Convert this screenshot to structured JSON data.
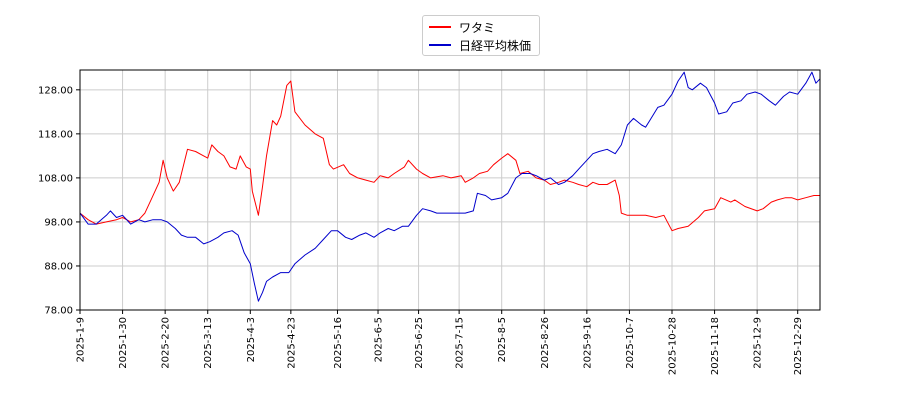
{
  "chart_data": {
    "type": "line",
    "title": "",
    "xlabel": "",
    "ylabel": "",
    "ylim": [
      78.0,
      132.5
    ],
    "yticks": [
      "78.00",
      "88.00",
      "98.00",
      "108.00",
      "118.00",
      "128.00"
    ],
    "xticks": [
      "2025-1-9",
      "2025-1-30",
      "2025-2-20",
      "2025-3-13",
      "2025-4-3",
      "2025-4-23",
      "2025-5-16",
      "2025-6-5",
      "2025-6-25",
      "2025-7-15",
      "2025-8-5",
      "2025-8-26",
      "2025-9-16",
      "2025-10-7",
      "2025-10-28",
      "2025-11-18",
      "2025-12-9",
      "2025-12-29"
    ],
    "grid": true,
    "legend_position": "top-center",
    "series": [
      {
        "name": "ワタミ",
        "color": "#ff0000",
        "points": [
          [
            "2025-01-09",
            100.0
          ],
          [
            "2025-01-13",
            98.5
          ],
          [
            "2025-01-17",
            97.5
          ],
          [
            "2025-01-22",
            98.0
          ],
          [
            "2025-01-27",
            98.5
          ],
          [
            "2025-01-30",
            99.0
          ],
          [
            "2025-02-03",
            98.0
          ],
          [
            "2025-02-07",
            98.5
          ],
          [
            "2025-02-10",
            100.0
          ],
          [
            "2025-02-13",
            103.0
          ],
          [
            "2025-02-17",
            107.0
          ],
          [
            "2025-02-19",
            112.0
          ],
          [
            "2025-02-21",
            108.0
          ],
          [
            "2025-02-24",
            105.0
          ],
          [
            "2025-02-27",
            107.0
          ],
          [
            "2025-03-03",
            114.5
          ],
          [
            "2025-03-07",
            114.0
          ],
          [
            "2025-03-11",
            113.0
          ],
          [
            "2025-03-13",
            112.5
          ],
          [
            "2025-03-15",
            115.5
          ],
          [
            "2025-03-18",
            114.0
          ],
          [
            "2025-03-21",
            113.0
          ],
          [
            "2025-03-24",
            110.5
          ],
          [
            "2025-03-27",
            110.0
          ],
          [
            "2025-03-29",
            113.0
          ],
          [
            "2025-04-01",
            110.5
          ],
          [
            "2025-04-03",
            110.0
          ],
          [
            "2025-04-04",
            105.0
          ],
          [
            "2025-04-07",
            99.5
          ],
          [
            "2025-04-09",
            106.0
          ],
          [
            "2025-04-11",
            113.0
          ],
          [
            "2025-04-14",
            121.0
          ],
          [
            "2025-04-16",
            120.0
          ],
          [
            "2025-04-18",
            122.0
          ],
          [
            "2025-04-21",
            129.0
          ],
          [
            "2025-04-23",
            130.0
          ],
          [
            "2025-04-25",
            123.0
          ],
          [
            "2025-04-30",
            120.0
          ],
          [
            "2025-05-05",
            118.0
          ],
          [
            "2025-05-09",
            117.0
          ],
          [
            "2025-05-12",
            111.0
          ],
          [
            "2025-05-14",
            110.0
          ],
          [
            "2025-05-19",
            111.0
          ],
          [
            "2025-05-22",
            109.0
          ],
          [
            "2025-05-26",
            108.0
          ],
          [
            "2025-05-30",
            107.5
          ],
          [
            "2025-06-03",
            107.0
          ],
          [
            "2025-06-06",
            108.5
          ],
          [
            "2025-06-10",
            108.0
          ],
          [
            "2025-06-13",
            109.0
          ],
          [
            "2025-06-18",
            110.5
          ],
          [
            "2025-06-20",
            112.0
          ],
          [
            "2025-06-24",
            110.0
          ],
          [
            "2025-06-27",
            109.0
          ],
          [
            "2025-07-01",
            108.0
          ],
          [
            "2025-07-07",
            108.5
          ],
          [
            "2025-07-11",
            108.0
          ],
          [
            "2025-07-16",
            108.5
          ],
          [
            "2025-07-18",
            107.0
          ],
          [
            "2025-07-22",
            108.0
          ],
          [
            "2025-07-25",
            109.0
          ],
          [
            "2025-07-29",
            109.5
          ],
          [
            "2025-08-01",
            111.0
          ],
          [
            "2025-08-05",
            112.5
          ],
          [
            "2025-08-08",
            113.5
          ],
          [
            "2025-08-12",
            112.0
          ],
          [
            "2025-08-14",
            109.0
          ],
          [
            "2025-08-18",
            109.5
          ],
          [
            "2025-08-22",
            108.0
          ],
          [
            "2025-08-26",
            107.5
          ],
          [
            "2025-08-29",
            106.5
          ],
          [
            "2025-09-02",
            107.0
          ],
          [
            "2025-09-05",
            107.5
          ],
          [
            "2025-09-09",
            107.0
          ],
          [
            "2025-09-12",
            106.5
          ],
          [
            "2025-09-16",
            106.0
          ],
          [
            "2025-09-19",
            107.0
          ],
          [
            "2025-09-22",
            106.5
          ],
          [
            "2025-09-26",
            106.5
          ],
          [
            "2025-09-30",
            107.5
          ],
          [
            "2025-10-02",
            104.0
          ],
          [
            "2025-10-03",
            100.0
          ],
          [
            "2025-10-06",
            99.5
          ],
          [
            "2025-10-10",
            99.5
          ],
          [
            "2025-10-15",
            99.5
          ],
          [
            "2025-10-20",
            99.0
          ],
          [
            "2025-10-24",
            99.5
          ],
          [
            "2025-10-28",
            96.0
          ],
          [
            "2025-10-31",
            96.5
          ],
          [
            "2025-11-05",
            97.0
          ],
          [
            "2025-11-10",
            99.0
          ],
          [
            "2025-11-13",
            100.5
          ],
          [
            "2025-11-18",
            101.0
          ],
          [
            "2025-11-21",
            103.5
          ],
          [
            "2025-11-26",
            102.5
          ],
          [
            "2025-11-28",
            103.0
          ],
          [
            "2025-12-03",
            101.5
          ],
          [
            "2025-12-09",
            100.5
          ],
          [
            "2025-12-12",
            101.0
          ],
          [
            "2025-12-16",
            102.5
          ],
          [
            "2025-12-19",
            103.0
          ],
          [
            "2025-12-23",
            103.5
          ],
          [
            "2025-12-26",
            103.5
          ],
          [
            "2025-12-29",
            103.0
          ],
          [
            "2026-01-02",
            103.5
          ],
          [
            "2026-01-06",
            104.0
          ],
          [
            "2026-01-09",
            104.0
          ]
        ]
      },
      {
        "name": "日経平均株価",
        "color": "#0000cc",
        "points": [
          [
            "2025-01-09",
            100.0
          ],
          [
            "2025-01-13",
            97.5
          ],
          [
            "2025-01-17",
            97.5
          ],
          [
            "2025-01-22",
            99.5
          ],
          [
            "2025-01-24",
            100.5
          ],
          [
            "2025-01-27",
            99.0
          ],
          [
            "2025-01-30",
            99.5
          ],
          [
            "2025-02-03",
            97.5
          ],
          [
            "2025-02-07",
            98.5
          ],
          [
            "2025-02-10",
            98.0
          ],
          [
            "2025-02-14",
            98.5
          ],
          [
            "2025-02-18",
            98.5
          ],
          [
            "2025-02-21",
            98.0
          ],
          [
            "2025-02-25",
            96.5
          ],
          [
            "2025-02-28",
            95.0
          ],
          [
            "2025-03-03",
            94.5
          ],
          [
            "2025-03-07",
            94.5
          ],
          [
            "2025-03-11",
            93.0
          ],
          [
            "2025-03-14",
            93.5
          ],
          [
            "2025-03-18",
            94.5
          ],
          [
            "2025-03-21",
            95.5
          ],
          [
            "2025-03-25",
            96.0
          ],
          [
            "2025-03-28",
            95.0
          ],
          [
            "2025-03-31",
            91.0
          ],
          [
            "2025-04-03",
            88.5
          ],
          [
            "2025-04-05",
            84.0
          ],
          [
            "2025-04-07",
            80.0
          ],
          [
            "2025-04-09",
            82.0
          ],
          [
            "2025-04-11",
            84.5
          ],
          [
            "2025-04-14",
            85.5
          ],
          [
            "2025-04-18",
            86.5
          ],
          [
            "2025-04-22",
            86.5
          ],
          [
            "2025-04-25",
            88.5
          ],
          [
            "2025-04-30",
            90.5
          ],
          [
            "2025-05-05",
            92.0
          ],
          [
            "2025-05-09",
            94.0
          ],
          [
            "2025-05-13",
            96.0
          ],
          [
            "2025-05-16",
            96.0
          ],
          [
            "2025-05-20",
            94.5
          ],
          [
            "2025-05-23",
            94.0
          ],
          [
            "2025-05-27",
            95.0
          ],
          [
            "2025-05-30",
            95.5
          ],
          [
            "2025-06-03",
            94.5
          ],
          [
            "2025-06-06",
            95.5
          ],
          [
            "2025-06-10",
            96.5
          ],
          [
            "2025-06-13",
            96.0
          ],
          [
            "2025-06-17",
            97.0
          ],
          [
            "2025-06-20",
            97.0
          ],
          [
            "2025-06-24",
            99.5
          ],
          [
            "2025-06-27",
            101.0
          ],
          [
            "2025-07-01",
            100.5
          ],
          [
            "2025-07-04",
            100.0
          ],
          [
            "2025-07-08",
            100.0
          ],
          [
            "2025-07-11",
            100.0
          ],
          [
            "2025-07-15",
            100.0
          ],
          [
            "2025-07-18",
            100.0
          ],
          [
            "2025-07-22",
            100.5
          ],
          [
            "2025-07-24",
            104.5
          ],
          [
            "2025-07-28",
            104.0
          ],
          [
            "2025-07-31",
            103.0
          ],
          [
            "2025-08-05",
            103.5
          ],
          [
            "2025-08-08",
            104.5
          ],
          [
            "2025-08-12",
            108.0
          ],
          [
            "2025-08-15",
            109.0
          ],
          [
            "2025-08-19",
            109.0
          ],
          [
            "2025-08-22",
            108.5
          ],
          [
            "2025-08-26",
            107.5
          ],
          [
            "2025-08-29",
            108.0
          ],
          [
            "2025-09-02",
            106.5
          ],
          [
            "2025-09-05",
            107.0
          ],
          [
            "2025-09-09",
            108.5
          ],
          [
            "2025-09-12",
            110.0
          ],
          [
            "2025-09-16",
            112.0
          ],
          [
            "2025-09-19",
            113.5
          ],
          [
            "2025-09-22",
            114.0
          ],
          [
            "2025-09-26",
            114.5
          ],
          [
            "2025-09-30",
            113.5
          ],
          [
            "2025-10-03",
            115.5
          ],
          [
            "2025-10-06",
            120.0
          ],
          [
            "2025-10-09",
            121.5
          ],
          [
            "2025-10-13",
            120.0
          ],
          [
            "2025-10-15",
            119.5
          ],
          [
            "2025-10-17",
            121.0
          ],
          [
            "2025-10-21",
            124.0
          ],
          [
            "2025-10-24",
            124.5
          ],
          [
            "2025-10-28",
            127.0
          ],
          [
            "2025-10-31",
            130.0
          ],
          [
            "2025-11-03",
            132.0
          ],
          [
            "2025-11-05",
            128.5
          ],
          [
            "2025-11-07",
            128.0
          ],
          [
            "2025-11-11",
            129.5
          ],
          [
            "2025-11-14",
            128.5
          ],
          [
            "2025-11-18",
            125.0
          ],
          [
            "2025-11-20",
            122.5
          ],
          [
            "2025-11-24",
            123.0
          ],
          [
            "2025-11-27",
            125.0
          ],
          [
            "2025-12-01",
            125.5
          ],
          [
            "2025-12-04",
            127.0
          ],
          [
            "2025-12-08",
            127.5
          ],
          [
            "2025-12-11",
            127.0
          ],
          [
            "2025-12-15",
            125.5
          ],
          [
            "2025-12-18",
            124.5
          ],
          [
            "2025-12-22",
            126.5
          ],
          [
            "2025-12-25",
            127.5
          ],
          [
            "2025-12-29",
            127.0
          ],
          [
            "2026-01-02",
            129.5
          ],
          [
            "2026-01-05",
            132.0
          ],
          [
            "2026-01-07",
            129.5
          ],
          [
            "2026-01-09",
            130.5
          ]
        ]
      }
    ]
  },
  "legend": [
    {
      "label": "ワタミ",
      "color": "#ff0000"
    },
    {
      "label": "日経平均株価",
      "color": "#0000cc"
    }
  ]
}
